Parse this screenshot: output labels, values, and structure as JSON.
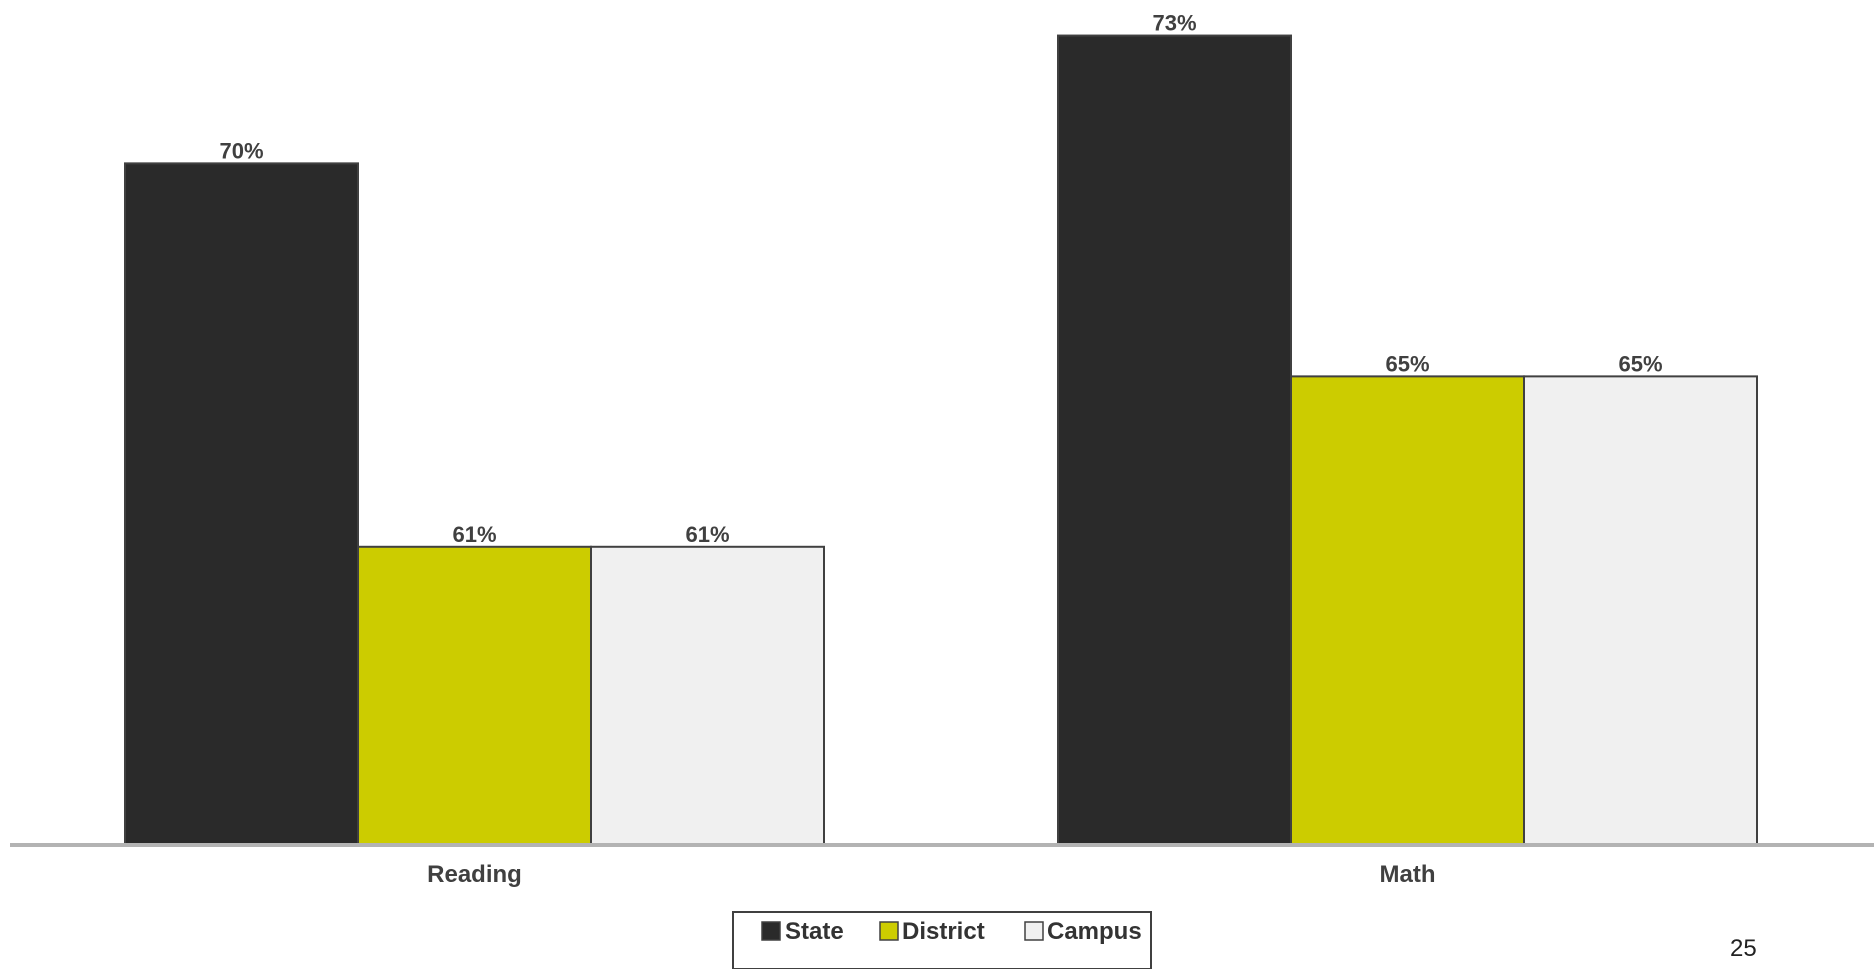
{
  "page_number": "25",
  "chart_data": {
    "type": "bar",
    "categories": [
      "Reading",
      "Math"
    ],
    "series": [
      {
        "name": "State",
        "values": [
          70,
          73
        ],
        "color": "#2a2a2a"
      },
      {
        "name": "District",
        "values": [
          61,
          65
        ],
        "color": "#cccc00"
      },
      {
        "name": "Campus",
        "values": [
          61,
          65
        ],
        "color": "#f0f0f0"
      }
    ],
    "value_format": "percent",
    "data_labels": [
      [
        "70%",
        "61%",
        "61%"
      ],
      [
        "73%",
        "65%",
        "65%"
      ]
    ],
    "ylim": [
      54,
      73.6
    ],
    "grid": false,
    "legend_position": "bottom",
    "title": "",
    "xlabel": "",
    "ylabel": "",
    "axis_color": "#b3b3b3",
    "bar_outline_color": "#404040"
  }
}
